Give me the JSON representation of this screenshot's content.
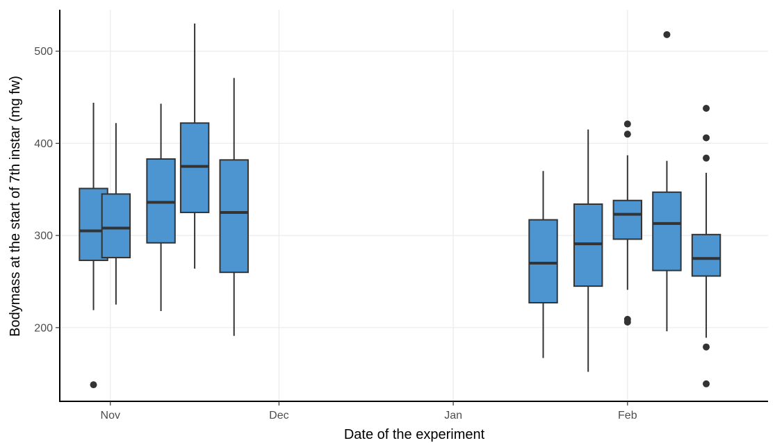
{
  "chart_data": {
    "type": "boxplot",
    "xlabel": "Date of the experiment",
    "ylabel": "Bodymass at the start of 7th instar (mg fw)",
    "x_axis": {
      "type": "date",
      "range": [
        "2019-10-23",
        "2020-02-26"
      ],
      "ticks": [
        {
          "date": "2019-11-01",
          "label": "Nov"
        },
        {
          "date": "2019-12-01",
          "label": "Dec"
        },
        {
          "date": "2020-01-01",
          "label": "Jan"
        },
        {
          "date": "2020-02-01",
          "label": "Feb"
        }
      ]
    },
    "y_axis": {
      "range": [
        120,
        545
      ],
      "ticks": [
        200,
        300,
        400,
        500
      ]
    },
    "grid": true,
    "box_fill": "#4d95d1",
    "box_stroke": "#333333",
    "boxes": [
      {
        "date": "2019-10-29",
        "whisker_low": 219,
        "q1": 273,
        "median": 305,
        "q3": 351,
        "whisker_high": 444,
        "outliers": [
          138
        ]
      },
      {
        "date": "2019-11-02",
        "whisker_low": 225,
        "q1": 276,
        "median": 308,
        "q3": 345,
        "whisker_high": 422,
        "outliers": []
      },
      {
        "date": "2019-11-10",
        "whisker_low": 218,
        "q1": 292,
        "median": 336,
        "q3": 383,
        "whisker_high": 443,
        "outliers": []
      },
      {
        "date": "2019-11-16",
        "whisker_low": 264,
        "q1": 325,
        "median": 375,
        "q3": 422,
        "whisker_high": 530,
        "outliers": []
      },
      {
        "date": "2019-11-23",
        "whisker_low": 191,
        "q1": 260,
        "median": 325,
        "q3": 382,
        "whisker_high": 471,
        "outliers": []
      },
      {
        "date": "2020-01-17",
        "whisker_low": 167,
        "q1": 227,
        "median": 270,
        "q3": 317,
        "whisker_high": 370,
        "outliers": []
      },
      {
        "date": "2020-01-25",
        "whisker_low": 152,
        "q1": 245,
        "median": 291,
        "q3": 334,
        "whisker_high": 415,
        "outliers": []
      },
      {
        "date": "2020-02-01",
        "whisker_low": 241,
        "q1": 296,
        "median": 323,
        "q3": 338,
        "whisker_high": 387,
        "outliers": [
          410,
          421,
          206,
          209
        ]
      },
      {
        "date": "2020-02-08",
        "whisker_low": 196,
        "q1": 262,
        "median": 313,
        "q3": 347,
        "whisker_high": 381,
        "outliers": [
          518
        ]
      },
      {
        "date": "2020-02-15",
        "whisker_low": 189,
        "q1": 256,
        "median": 275,
        "q3": 301,
        "whisker_high": 368,
        "outliers": [
          438,
          406,
          384,
          179,
          139
        ]
      }
    ]
  }
}
